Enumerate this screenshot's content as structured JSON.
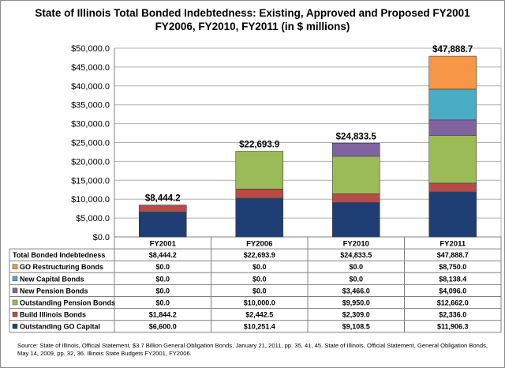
{
  "chart_data": {
    "type": "bar",
    "stacked": true,
    "title_lines": [
      "State of Illinois Total Bonded Indebtedness: Existing, Approved and Proposed FY2001",
      "FY2006, FY2010, FY2011 (in $ millions)"
    ],
    "categories": [
      "FY2001",
      "FY2006",
      "FY2010",
      "FY2011"
    ],
    "ylim": [
      0,
      50000
    ],
    "ytick_step": 5000,
    "ytick_labels": [
      "$0.0",
      "$5,000.0",
      "$10,000.0",
      "$15,000.0",
      "$20,000.0",
      "$25,000.0",
      "$30,000.0",
      "$35,000.0",
      "$40,000.0",
      "$45,000.0",
      "$50,000.0"
    ],
    "grid": true,
    "totals": {
      "name": "Total Bonded Indebtedness",
      "values": [
        8444.2,
        22693.9,
        24833.5,
        47888.7
      ],
      "labels": [
        "$8,444.2",
        "$22,693.9",
        "$24,833.5",
        "$47,888.7"
      ]
    },
    "series": [
      {
        "name": "Outstanding GO Capital",
        "color": "#1F3F74",
        "values": [
          6600.0,
          10251.4,
          9108.5,
          11906.3
        ],
        "labels": [
          "$6,600.0",
          "$10,251.4",
          "$9,108.5",
          "$11,906.3"
        ]
      },
      {
        "name": "Build Illinois Bonds",
        "color": "#B84A48",
        "values": [
          1844.2,
          2442.5,
          2309.0,
          2336.0
        ],
        "labels": [
          "$1,844.2",
          "$2,442.5",
          "$2,309.0",
          "$2,336.0"
        ]
      },
      {
        "name": "Outstanding Pension Bonds",
        "color": "#9BBB59",
        "values": [
          0.0,
          10000.0,
          9950.0,
          12662.0
        ],
        "labels": [
          "$0.0",
          "$10,000.0",
          "$9,950.0",
          "$12,662.0"
        ]
      },
      {
        "name": "New Pension Bonds",
        "color": "#8064A2",
        "values": [
          0.0,
          0.0,
          3466.0,
          4096.0
        ],
        "labels": [
          "$0.0",
          "$0.0",
          "$3,466.0",
          "$4,096.0"
        ]
      },
      {
        "name": "New Capital Bonds",
        "color": "#4BACC6",
        "values": [
          0.0,
          0.0,
          0.0,
          8138.4
        ],
        "labels": [
          "$0.0",
          "$0.0",
          "$0.0",
          "$8,138.4"
        ]
      },
      {
        "name": "GO Restructuring  Bonds",
        "color": "#F79646",
        "values": [
          0.0,
          0.0,
          0.0,
          8750.0
        ],
        "labels": [
          "$0.0",
          "$0.0",
          "$0.0",
          "$8,750.0"
        ]
      }
    ],
    "table_row_order": [
      "GO Restructuring  Bonds",
      "New Capital Bonds",
      "New Pension Bonds",
      "Outstanding Pension Bonds",
      "Build Illinois Bonds",
      "Outstanding GO Capital"
    ]
  },
  "source_note": "Source: State of Illinois, Official Statement, $3.7 Billion General Obligation Bonds, January 21, 2011, pp. 35, 41, 45.  State of Illinois, Official Statement, General Obligation Bonds, May 14, 2009, pp. 32, 36. Illinois State Budgets FY2001, FY2006."
}
